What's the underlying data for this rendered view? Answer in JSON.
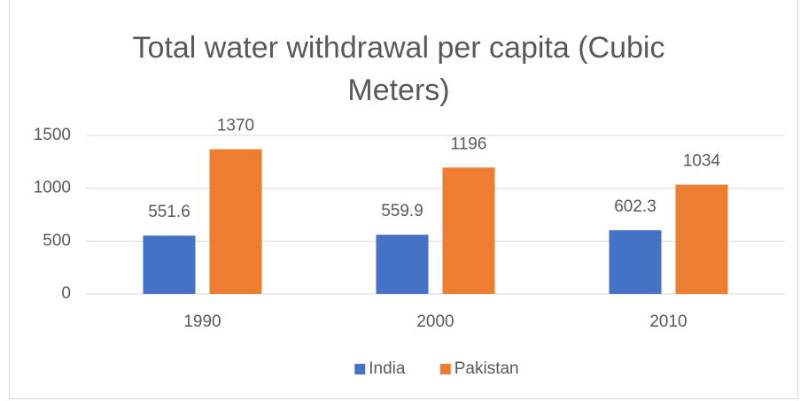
{
  "chart_data": {
    "type": "bar",
    "title": "Total water withdrawal per capita (Cubic Meters)",
    "categories": [
      "1990",
      "2000",
      "2010"
    ],
    "series": [
      {
        "name": "India",
        "color": "#4472c4",
        "values": [
          551.6,
          559.9,
          602.3
        ]
      },
      {
        "name": "Pakistan",
        "color": "#ed7d31",
        "values": [
          1370,
          1196,
          1034
        ]
      }
    ],
    "ylim": [
      0,
      1500
    ],
    "yticks": [
      0,
      500,
      1000,
      1500
    ],
    "grid": true,
    "legend": "bottom"
  }
}
